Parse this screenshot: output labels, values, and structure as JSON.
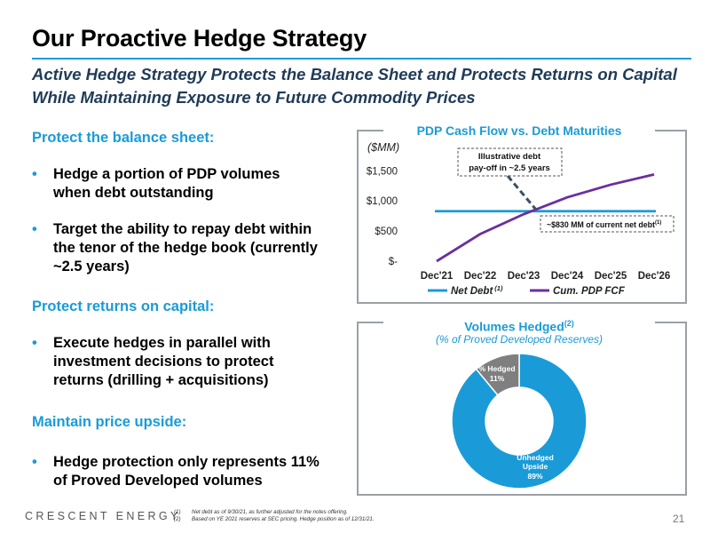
{
  "header": {
    "title": "Our Proactive Hedge Strategy",
    "subtitle": "Active Hedge Strategy Protects the Balance Sheet and Protects Returns on Capital While Maintaining Exposure to Future Commodity Prices"
  },
  "left": {
    "sections": [
      {
        "heading": "Protect the balance sheet:",
        "bullets": [
          "Hedge a portion of PDP volumes when debt outstanding",
          "Target the ability to repay debt within the tenor of the hedge book (currently ~2.5 years)"
        ]
      },
      {
        "heading": "Protect returns on capital:",
        "bullets": [
          "Execute hedges in parallel with investment decisions to protect returns (drilling + acquisitions)"
        ]
      },
      {
        "heading": "Maintain price upside:",
        "bullets": [
          "Hedge protection only represents 11% of Proved Developed volumes"
        ]
      }
    ],
    "bullet_glyph": "•"
  },
  "chart_data": [
    {
      "type": "line",
      "title": "PDP Cash Flow vs. Debt Maturities",
      "ylabel": "($MM)",
      "xlabel": "",
      "categories": [
        "Dec'21",
        "Dec'22",
        "Dec'23",
        "Dec'24",
        "Dec'25",
        "Dec'26"
      ],
      "ytick_labels": [
        "$-",
        "$500",
        "$1,000",
        "$1,500"
      ],
      "yticks": [
        0,
        500,
        1000,
        1500
      ],
      "ylim": [
        0,
        1800
      ],
      "grid": false,
      "legend_position": "bottom",
      "series": [
        {
          "name": "Net Debt",
          "name_sup": "(1)",
          "color": "#1a9bd7",
          "values": [
            830,
            830,
            830,
            830,
            830,
            830
          ]
        },
        {
          "name": "Cum. PDP FCF",
          "name_sup": "",
          "color": "#6a2fa0",
          "values": [
            0,
            450,
            780,
            1060,
            1270,
            1440
          ]
        }
      ],
      "annotations": {
        "payoff": {
          "line1": "Illustrative debt",
          "line2": "pay-off in ~2.5 years"
        },
        "net_debt": {
          "text": "~$830 MM of current net debt",
          "sup": "(1)"
        }
      }
    },
    {
      "type": "pie",
      "title": "Volumes Hedged",
      "title_sup": "(2)",
      "subtitle": "(% of Proved Developed Reserves)",
      "style": "donut",
      "slices": [
        {
          "label": "Unhedged Upside",
          "value": 89,
          "value_label": "89%",
          "color": "#1a9bd7"
        },
        {
          "label": "% Hedged",
          "value": 11,
          "value_label": "11%",
          "color": "#7f7f7f"
        }
      ]
    }
  ],
  "footer": {
    "logo": "CRESCENT ENERGY",
    "footnotes": [
      {
        "num": "(1)",
        "text": "Net debt as of 9/30/21, as further adjusted for the notes offering."
      },
      {
        "num": "(2)",
        "text": "Based on YE 2021 reserves at SEC pricing. Hedge position as of 12/31/21."
      }
    ],
    "page_number": "21"
  }
}
